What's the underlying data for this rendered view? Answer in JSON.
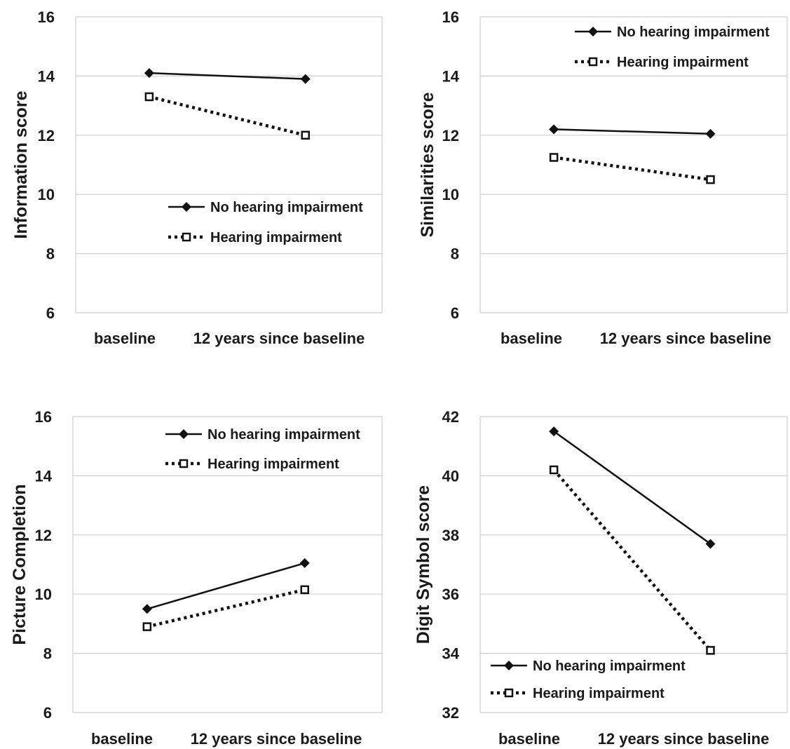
{
  "legend_labels": {
    "no_hearing_impairment": "No hearing impairment",
    "hearing_impairment": "Hearing impairment"
  },
  "chart_data": [
    {
      "type": "line",
      "categories": [
        "baseline",
        "12 years since baseline"
      ],
      "ylabel": "Information score",
      "ylim": [
        6,
        16
      ],
      "yticks": [
        6,
        8,
        10,
        12,
        14,
        16
      ],
      "grid": true,
      "legend_position": "center-right",
      "series": [
        {
          "name": "No hearing impairment",
          "values": [
            14.1,
            13.9
          ],
          "style": "solid",
          "marker": "diamond"
        },
        {
          "name": "Hearing impairment",
          "values": [
            13.3,
            12.0
          ],
          "style": "dotted",
          "marker": "open-square"
        }
      ]
    },
    {
      "type": "line",
      "categories": [
        "baseline",
        "12 years since baseline"
      ],
      "ylabel": "Similarities score",
      "ylim": [
        6,
        16
      ],
      "yticks": [
        6,
        8,
        10,
        12,
        14,
        16
      ],
      "grid": true,
      "legend_position": "top-right",
      "series": [
        {
          "name": "No hearing impairment",
          "values": [
            12.2,
            12.05
          ],
          "style": "solid",
          "marker": "diamond"
        },
        {
          "name": "Hearing impairment",
          "values": [
            11.25,
            10.5
          ],
          "style": "dotted",
          "marker": "open-square"
        }
      ]
    },
    {
      "type": "line",
      "categories": [
        "baseline",
        "12 years since baseline"
      ],
      "ylabel": "Picture Completion",
      "ylim": [
        6,
        16
      ],
      "yticks": [
        6,
        8,
        10,
        12,
        14,
        16
      ],
      "grid": true,
      "legend_position": "top-right",
      "series": [
        {
          "name": "No hearing impairment",
          "values": [
            9.5,
            11.05
          ],
          "style": "solid",
          "marker": "diamond"
        },
        {
          "name": "Hearing impairment",
          "values": [
            8.9,
            10.15
          ],
          "style": "dotted",
          "marker": "open-square"
        }
      ]
    },
    {
      "type": "line",
      "categories": [
        "baseline",
        "12 years since baseline"
      ],
      "ylabel": "Digit Symbol score",
      "ylim": [
        32,
        42
      ],
      "yticks": [
        32,
        34,
        36,
        38,
        40,
        42
      ],
      "grid": true,
      "legend_position": "bottom-left",
      "series": [
        {
          "name": "No hearing impairment",
          "values": [
            41.5,
            37.7
          ],
          "style": "solid",
          "marker": "diamond"
        },
        {
          "name": "Hearing impairment",
          "values": [
            40.2,
            34.1
          ],
          "style": "dotted",
          "marker": "open-square"
        }
      ]
    }
  ]
}
